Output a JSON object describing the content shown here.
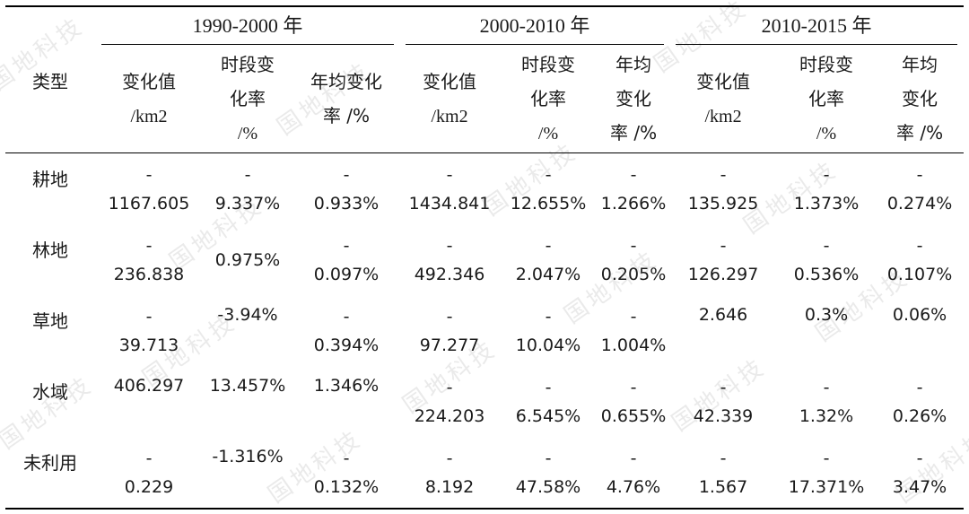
{
  "watermark": "国地科技",
  "header": {
    "type_label": "类型",
    "periods": [
      "1990-2000 年",
      "2000-2010 年",
      "2010-2015 年"
    ],
    "subcolumns": [
      [
        "变化值",
        "/km2"
      ],
      [
        "时段变",
        "化率",
        "/%"
      ],
      [
        "年均变化",
        "率 /%"
      ],
      [
        "变化值",
        "/km2"
      ],
      [
        "时段变",
        "化率",
        "/%"
      ],
      [
        "年均",
        "变化",
        "率 /%"
      ],
      [
        "变化值",
        "/km2"
      ],
      [
        "时段变",
        "化率",
        "/%"
      ],
      [
        "年均",
        "变化",
        "率 /%"
      ]
    ]
  },
  "rows": [
    {
      "type": "耕地",
      "cells": [
        {
          "dash": "-",
          "value": "1167.605"
        },
        {
          "dash": "-",
          "value": "9.337%"
        },
        {
          "dash": "-",
          "value": "0.933%"
        },
        {
          "dash": "-",
          "value": "1434.841"
        },
        {
          "dash": "-",
          "value": "12.655%"
        },
        {
          "dash": "-",
          "value": "1.266%"
        },
        {
          "dash": "-",
          "value": "135.925"
        },
        {
          "dash": "-",
          "value": "1.373%"
        },
        {
          "dash": "-",
          "value": "0.274%"
        }
      ]
    },
    {
      "type": "林地",
      "cells": [
        {
          "dash": "-",
          "value": "236.838"
        },
        {
          "dash": "",
          "value": "0.975%"
        },
        {
          "dash": "-",
          "value": "0.097%"
        },
        {
          "dash": "-",
          "value": "492.346"
        },
        {
          "dash": "-",
          "value": "2.047%"
        },
        {
          "dash": "-",
          "value": "0.205%"
        },
        {
          "dash": "-",
          "value": "126.297"
        },
        {
          "dash": "-",
          "value": "0.536%"
        },
        {
          "dash": "-",
          "value": "0.107%"
        }
      ]
    },
    {
      "type": "草地",
      "cells": [
        {
          "dash": "-",
          "value": "39.713"
        },
        {
          "dash": "",
          "value": "-3.94%",
          "raised": true
        },
        {
          "dash": "-",
          "value": "0.394%"
        },
        {
          "dash": "-",
          "value": "97.277"
        },
        {
          "dash": "-",
          "value": "10.04%"
        },
        {
          "dash": "-",
          "value": "1.004%"
        },
        {
          "dash": "",
          "value": "2.646",
          "raised": true
        },
        {
          "dash": "",
          "value": "0.3%",
          "raised": true
        },
        {
          "dash": "",
          "value": "0.06%",
          "raised": true
        }
      ]
    },
    {
      "type": "水域",
      "cells": [
        {
          "dash": "",
          "value": "406.297",
          "raised": true
        },
        {
          "dash": "",
          "value": "13.457%",
          "raised": true
        },
        {
          "dash": "",
          "value": "1.346%",
          "raised": true
        },
        {
          "dash": "-",
          "value": "224.203"
        },
        {
          "dash": "-",
          "value": "6.545%"
        },
        {
          "dash": "-",
          "value": "0.655%"
        },
        {
          "dash": "-",
          "value": "42.339"
        },
        {
          "dash": "-",
          "value": "1.32%"
        },
        {
          "dash": "-",
          "value": "0.26%"
        }
      ]
    },
    {
      "type": "未利用",
      "cells": [
        {
          "dash": "-",
          "value": "0.229"
        },
        {
          "dash": "",
          "value": "-1.316%",
          "raised": true
        },
        {
          "dash": "-",
          "value": "0.132%"
        },
        {
          "dash": "-",
          "value": "8.192"
        },
        {
          "dash": "-",
          "value": "47.58%"
        },
        {
          "dash": "-",
          "value": "4.76%"
        },
        {
          "dash": "-",
          "value": "1.567"
        },
        {
          "dash": "-",
          "value": "17.371%"
        },
        {
          "dash": "-",
          "value": "3.47%"
        }
      ]
    }
  ]
}
